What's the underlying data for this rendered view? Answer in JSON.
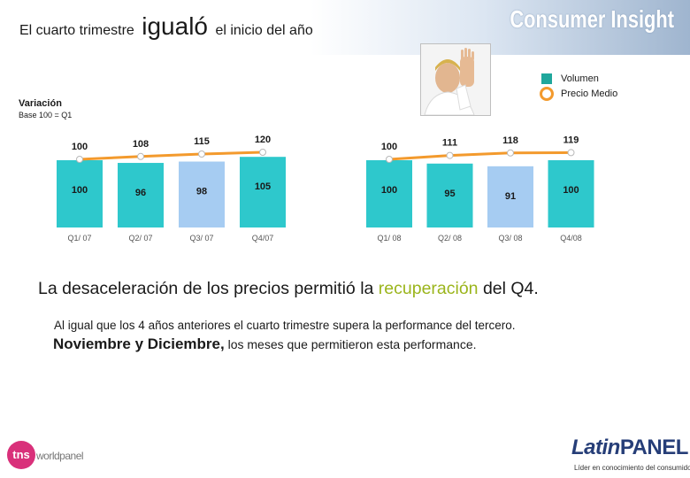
{
  "header": {
    "title_part1": "El cuarto trimestre",
    "title_part2": "igualó",
    "title_part3": "el inicio del año",
    "brand": "Consumer Insight"
  },
  "legend": {
    "volume_label": "Volumen",
    "price_label": "Precio Medio"
  },
  "axis_note": {
    "label": "Variación",
    "base": "Base 100 = Q1"
  },
  "colors": {
    "volume_bar": "#2ec8cc",
    "highlight_bar": "#a6ccf2",
    "price_line": "#f39a2d"
  },
  "chart_data": [
    {
      "type": "bar",
      "categories": [
        "Q1/ 07",
        "Q2/ 07",
        "Q3/ 07",
        "Q4/07"
      ],
      "series": [
        {
          "name": "Volumen",
          "values": [
            100,
            96,
            98,
            105
          ],
          "highlight_index": 2
        },
        {
          "name": "Precio Medio",
          "type": "line",
          "values": [
            100,
            108,
            115,
            120
          ]
        }
      ]
    },
    {
      "type": "bar",
      "categories": [
        "Q1/ 08",
        "Q2/ 08",
        "Q3/ 08",
        "Q4/08"
      ],
      "series": [
        {
          "name": "Volumen",
          "values": [
            100,
            95,
            91,
            100
          ],
          "highlight_index": 2
        },
        {
          "name": "Precio Medio",
          "type": "line",
          "values": [
            100,
            111,
            118,
            119
          ]
        }
      ]
    }
  ],
  "body": {
    "headline_part1": "La desaceleración de los precios permitió la ",
    "headline_highlight": "recuperación",
    "headline_part2": " del Q4.",
    "line1": "Al igual que los 4 años anteriores el cuarto trimestre supera la performance del tercero.",
    "line2_bold": "Noviembre y Diciembre,",
    "line2_rest": " los meses que permitieron esta performance."
  },
  "footer": {
    "tns_mark": "tns",
    "tns_word": "worldpanel",
    "latin_brand_a": "Latin",
    "latin_brand_b": "PANEL",
    "latin_tagline": "Líder en conocimiento del consumidor"
  }
}
